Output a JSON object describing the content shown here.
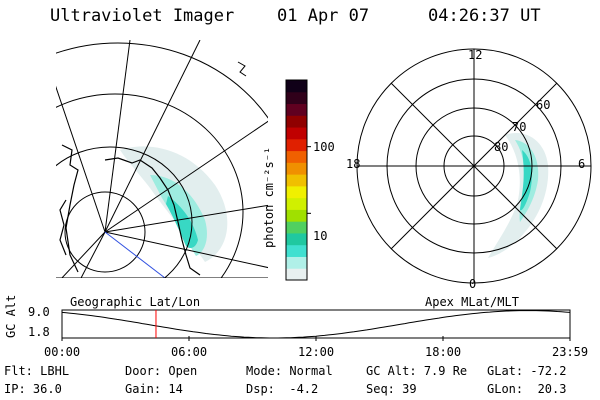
{
  "header": {
    "instrument": "Ultraviolet Imager",
    "date": "01 Apr 07",
    "time": "04:26:37 UT"
  },
  "colorbar": {
    "unit_label": "photon cm⁻²s⁻¹",
    "ticks": [
      "100",
      "10"
    ],
    "tick_values": [
      100,
      10
    ],
    "colors": [
      "#e8f0f0",
      "#b0f0e8",
      "#40e0d0",
      "#20c8a0",
      "#50d060",
      "#a0e000",
      "#d0f000",
      "#f0f000",
      "#f0c000",
      "#f09000",
      "#f06000",
      "#e02000",
      "#c00000",
      "#900000",
      "#600020",
      "#30001a",
      "#100018"
    ]
  },
  "left_map": {
    "name": "Geographic Lat/Lon"
  },
  "right_map": {
    "name": "Apex MLat/MLT",
    "mlt_labels": {
      "top": "12",
      "left": "18",
      "right": "6",
      "bottom": "0"
    },
    "lat_labels": [
      "60",
      "70",
      "80"
    ]
  },
  "altitude_plot": {
    "axis_label": "GC Alt",
    "y_ticks": [
      "9.0",
      "1.8"
    ],
    "ylim": [
      1.8,
      9.0
    ],
    "x_ticks": [
      "00:00",
      "06:00",
      "12:00",
      "18:00",
      "23:59"
    ],
    "current_hour": 4.44,
    "marker_color": "#ff0000",
    "min_hour": 10.0
  },
  "footer": {
    "rows": [
      [
        {
          "label": "Flt:",
          "value": "LBHL"
        },
        {
          "label": "Door:",
          "value": "Open"
        },
        {
          "label": "Mode:",
          "value": "Normal"
        },
        {
          "label": "GC Alt:",
          "value": "7.9 Re"
        },
        {
          "label": "GLat:",
          "value": "-72.2"
        }
      ],
      [
        {
          "label": "IP:",
          "value": "36.0"
        },
        {
          "label": "Gain:",
          "value": "14"
        },
        {
          "label": "Dsp:",
          "value": "-4.2"
        },
        {
          "label": "Seq:",
          "value": "39"
        },
        {
          "label": "GLon:",
          "value": "20.3"
        }
      ]
    ]
  }
}
